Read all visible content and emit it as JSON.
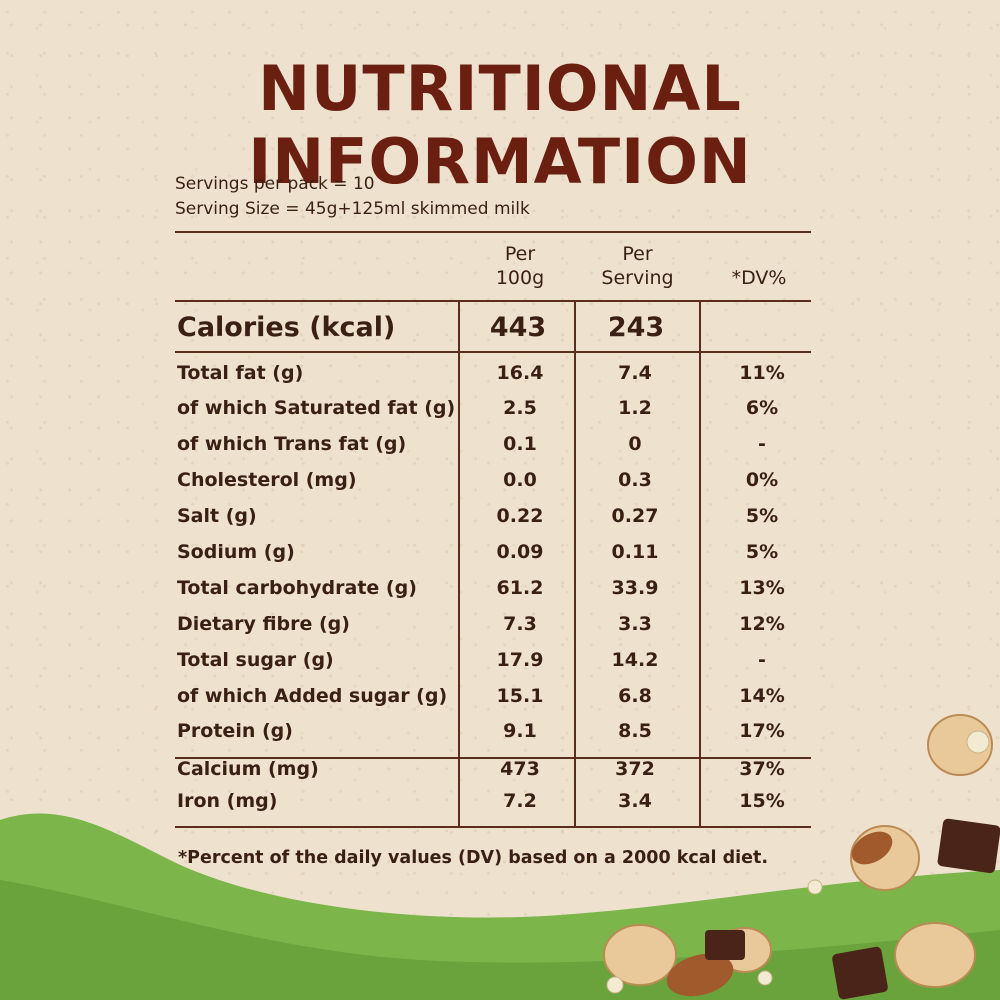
{
  "title": "NUTRITIONAL INFORMATION",
  "servings": {
    "per_pack": "Servings per pack = 10",
    "size": "Serving Size = 45g+125ml skimmed milk"
  },
  "headers": {
    "per100_line1": "Per",
    "per100_line2": "100g",
    "perserv_line1": "Per",
    "perserv_line2": "Serving",
    "dv": "*DV%"
  },
  "calories": {
    "label": "Calories (kcal)",
    "per100": "443",
    "perserving": "243"
  },
  "rows": [
    {
      "name": "Total fat (g)",
      "per100": "16.4",
      "perserving": "7.4",
      "dv": "11%"
    },
    {
      "name": "of which Saturated fat (g)",
      "per100": "2.5",
      "perserving": "1.2",
      "dv": "6%"
    },
    {
      "name": "of which Trans fat (g)",
      "per100": "0.1",
      "perserving": "0",
      "dv": "-"
    },
    {
      "name": "Cholesterol (mg)",
      "per100": "0.0",
      "perserving": "0.3",
      "dv": "0%"
    },
    {
      "name": "Salt (g)",
      "per100": "0.22",
      "perserving": "0.27",
      "dv": "5%"
    },
    {
      "name": "Sodium (g)",
      "per100": "0.09",
      "perserving": "0.11",
      "dv": "5%"
    },
    {
      "name": "Total carbohydrate (g)",
      "per100": "61.2",
      "perserving": "33.9",
      "dv": "13%"
    },
    {
      "name": "Dietary fibre (g)",
      "per100": "7.3",
      "perserving": "3.3",
      "dv": "12%"
    },
    {
      "name": "Total sugar (g)",
      "per100": "17.9",
      "perserving": "14.2",
      "dv": "-"
    },
    {
      "name": "of which Added sugar (g)",
      "per100": "15.1",
      "perserving": "6.8",
      "dv": "14%"
    },
    {
      "name": "Protein (g)",
      "per100": "9.1",
      "perserving": "8.5",
      "dv": "17%"
    },
    {
      "name": "Calcium (mg)",
      "per100": "473",
      "perserving": "372",
      "dv": "37%"
    },
    {
      "name": "Iron (mg)",
      "per100": "7.2",
      "perserving": "3.4",
      "dv": "15%"
    }
  ],
  "footnote": "*Percent of the daily values (DV) based on a 2000 kcal diet.",
  "colors": {
    "background": "#eee2cf",
    "title": "#6b1f10",
    "text": "#3a1f14",
    "green": "#7cb54a"
  }
}
